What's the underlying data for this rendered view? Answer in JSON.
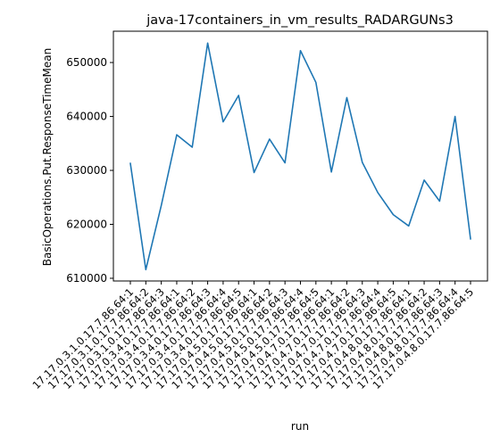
{
  "chart_data": {
    "type": "line",
    "title": "java-17containers_in_vm_results_RADARGUNs3",
    "xlabel": "run",
    "ylabel": "BasicOperations.Put.ResponseTimeMean",
    "ylim": [
      609500,
      655800
    ],
    "yticks": [
      610000,
      620000,
      630000,
      640000,
      650000
    ],
    "ytick_labels": [
      "610000",
      "620000",
      "630000",
      "640000",
      "650000"
    ],
    "grid": false,
    "x": [
      "17.17.0.3.1.0.17.7.86.64:1",
      "17.17.0.3.1.0.17.7.86.64:2",
      "17.17.0.3.1.0.17.7.86.64:3",
      "17.17.0.3.4.0.17.7.86.64:1",
      "17.17.0.3.4.0.17.7.86.64:2",
      "17.17.0.3.4.0.17.7.86.64:3",
      "17.17.0.3.4.0.17.7.86.64:4",
      "17.17.0.3.4.0.17.7.86.64:5",
      "17.17.0.4.5.0.17.7.86.64:1",
      "17.17.0.4.5.0.17.7.86.64:2",
      "17.17.0.4.5.0.17.7.86.64:3",
      "17.17.0.4.5.0.17.7.86.64:4",
      "17.17.0.4.5.0.17.7.86.64:5",
      "17.17.0.4.7.0.17.7.86.64:1",
      "17.17.0.4.7.0.17.7.86.64:2",
      "17.17.0.4.7.0.17.7.86.64:3",
      "17.17.0.4.7.0.17.7.86.64:4",
      "17.17.0.4.7.0.17.7.86.64:5",
      "17.17.0.4.8.0.17.7.86.64:1",
      "17.17.0.4.8.0.17.7.86.64:2",
      "17.17.0.4.8.0.17.7.86.64:3",
      "17.17.0.4.8.0.17.7.86.64:4",
      "17.17.0.4.8.0.17.7.86.64:5"
    ],
    "series": [
      {
        "values": [
          631300,
          611600,
          623500,
          636600,
          634300,
          653600,
          639000,
          643900,
          629600,
          635800,
          631400,
          652200,
          646300,
          629700,
          643500,
          631500,
          625900,
          621800,
          619700,
          628200,
          624300,
          640000,
          617300
        ]
      }
    ],
    "line_color": "#1f77b4"
  }
}
